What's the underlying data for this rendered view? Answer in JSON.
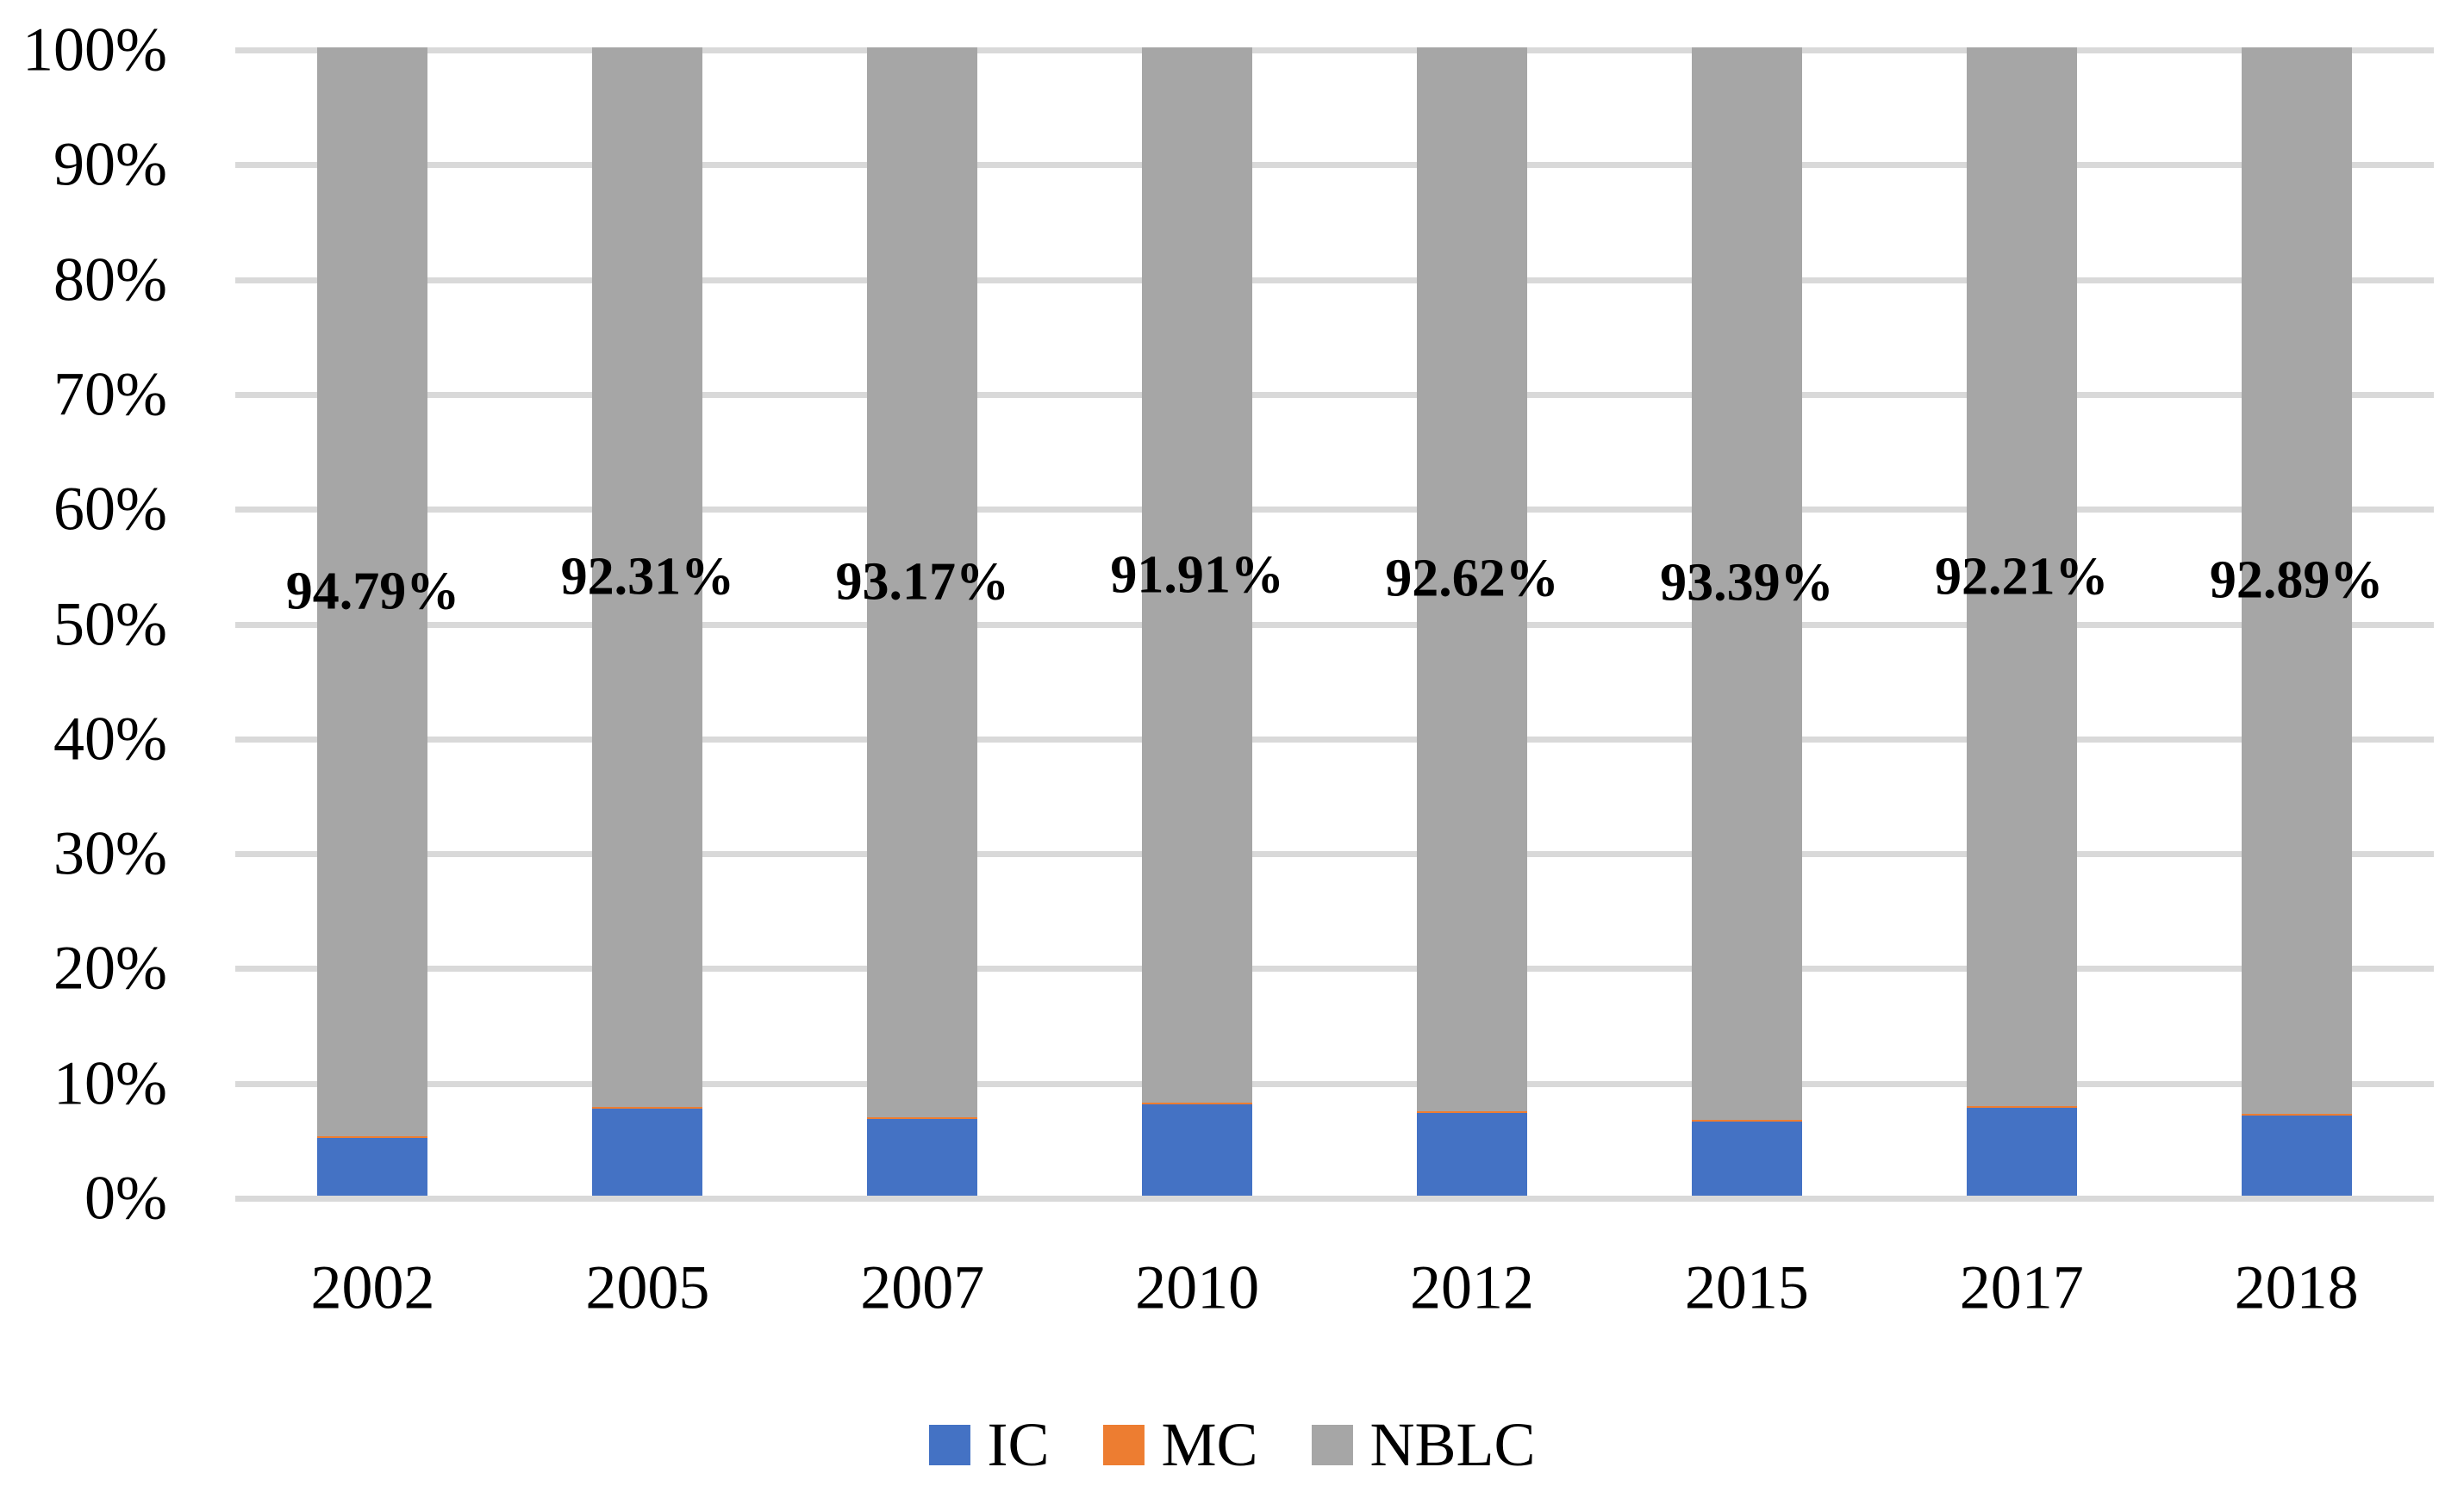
{
  "chart_data": {
    "type": "bar",
    "variant": "stacked-100-percent-column",
    "title": "",
    "categories": [
      "2002",
      "2005",
      "2007",
      "2010",
      "2012",
      "2015",
      "2017",
      "2018"
    ],
    "series": [
      {
        "name": "IC",
        "color": "#4472c4",
        "values": [
          5.06,
          7.54,
          6.68,
          7.94,
          7.23,
          6.46,
          7.64,
          6.96
        ]
      },
      {
        "name": "MC",
        "color": "#ed7d31",
        "values": [
          0.15,
          0.15,
          0.15,
          0.15,
          0.15,
          0.15,
          0.15,
          0.15
        ]
      },
      {
        "name": "NBLC",
        "color": "#a6a6a6",
        "values": [
          94.79,
          92.31,
          93.17,
          91.91,
          92.62,
          93.39,
          92.21,
          92.89
        ]
      }
    ],
    "data_labels": {
      "series": "NBLC",
      "texts": [
        "94.79%",
        "92.31%",
        "93.17%",
        "91.91%",
        "92.62%",
        "93.39%",
        "92.21%",
        "92.89%"
      ]
    },
    "xlabel": "",
    "ylabel": "",
    "y_axis": {
      "min": 0,
      "max": 100,
      "step": 10,
      "tick_labels": [
        "0%",
        "10%",
        "20%",
        "30%",
        "40%",
        "50%",
        "60%",
        "70%",
        "80%",
        "90%",
        "100%"
      ]
    },
    "x_axis": {
      "tick_labels": [
        "2002",
        "2005",
        "2007",
        "2010",
        "2012",
        "2015",
        "2017",
        "2018"
      ]
    },
    "legend": {
      "position": "bottom-center",
      "entries": [
        "IC",
        "MC",
        "NBLC"
      ]
    },
    "grid": true,
    "style_colors": {
      "gridline": "#d9d9d9",
      "text": "#000000",
      "background": "#ffffff"
    }
  }
}
